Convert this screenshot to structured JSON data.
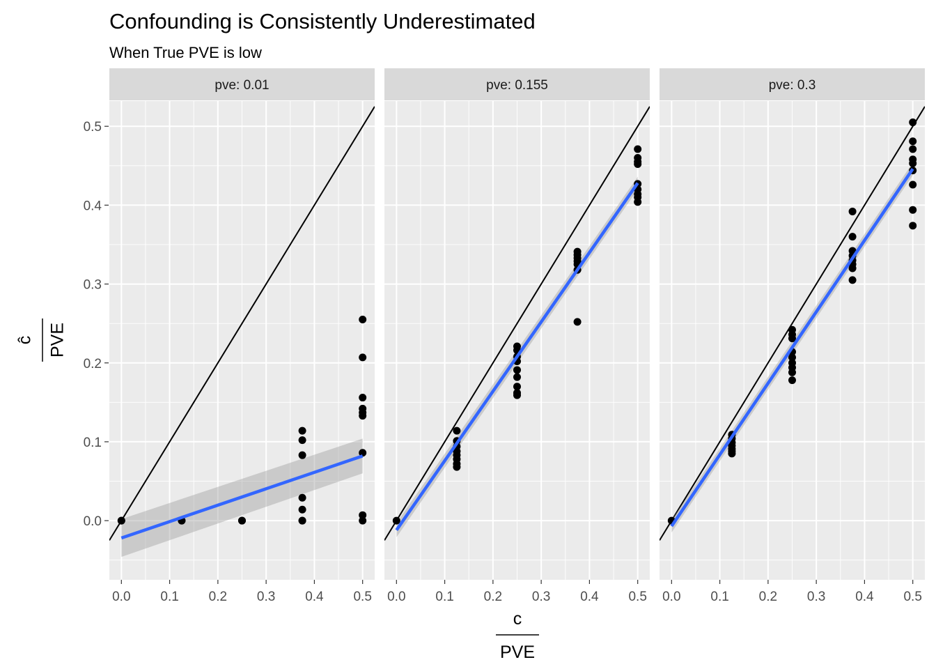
{
  "chart_data": {
    "type": "scatter",
    "title": "Confounding is Consistently Underestimated",
    "subtitle": "When True PVE is low",
    "xlabel": {
      "numerator": "c",
      "denominator": "PVE"
    },
    "ylabel": {
      "numerator": "ĉ",
      "denominator": "PVE"
    },
    "xlim": [
      -0.025,
      0.525
    ],
    "ylim": [
      -0.075,
      0.532
    ],
    "x_ticks": [
      "0.0",
      "0.1",
      "0.2",
      "0.3",
      "0.4",
      "0.5"
    ],
    "y_ticks": [
      "0.0",
      "0.1",
      "0.2",
      "0.3",
      "0.4",
      "0.5"
    ],
    "grid": true,
    "reference_line": "y = x",
    "panels": [
      {
        "strip": "pve: 0.01",
        "fit": {
          "x0": 0.0,
          "y0": -0.022,
          "x1": 0.5,
          "y1": 0.082
        },
        "band": {
          "lower0": -0.046,
          "upper0": 0.002,
          "lower1": 0.06,
          "upper1": 0.104
        },
        "points": [
          [
            0.0,
            0.0
          ],
          [
            0.0,
            0.0
          ],
          [
            0.125,
            0.0
          ],
          [
            0.125,
            0.0
          ],
          [
            0.25,
            0.0
          ],
          [
            0.25,
            0.0
          ],
          [
            0.375,
            0.114
          ],
          [
            0.375,
            0.102
          ],
          [
            0.375,
            0.083
          ],
          [
            0.375,
            0.029
          ],
          [
            0.375,
            0.014
          ],
          [
            0.375,
            0.0
          ],
          [
            0.375,
            0.0
          ],
          [
            0.5,
            0.255
          ],
          [
            0.5,
            0.207
          ],
          [
            0.5,
            0.156
          ],
          [
            0.5,
            0.142
          ],
          [
            0.5,
            0.137
          ],
          [
            0.5,
            0.133
          ],
          [
            0.5,
            0.086
          ],
          [
            0.5,
            0.007
          ],
          [
            0.5,
            0.0
          ]
        ]
      },
      {
        "strip": "pve: 0.155",
        "fit": {
          "x0": 0.0,
          "y0": -0.012,
          "x1": 0.5,
          "y1": 0.428
        },
        "band": {
          "lower0": -0.021,
          "upper0": -0.003,
          "lower1": 0.42,
          "upper1": 0.436
        },
        "points": [
          [
            0.0,
            0.0
          ],
          [
            0.125,
            0.114
          ],
          [
            0.125,
            0.101
          ],
          [
            0.125,
            0.094
          ],
          [
            0.125,
            0.088
          ],
          [
            0.125,
            0.083
          ],
          [
            0.125,
            0.078
          ],
          [
            0.125,
            0.072
          ],
          [
            0.125,
            0.068
          ],
          [
            0.25,
            0.221
          ],
          [
            0.25,
            0.216
          ],
          [
            0.25,
            0.208
          ],
          [
            0.25,
            0.202
          ],
          [
            0.25,
            0.191
          ],
          [
            0.25,
            0.182
          ],
          [
            0.25,
            0.17
          ],
          [
            0.25,
            0.162
          ],
          [
            0.25,
            0.159
          ],
          [
            0.375,
            0.341
          ],
          [
            0.375,
            0.337
          ],
          [
            0.375,
            0.333
          ],
          [
            0.375,
            0.329
          ],
          [
            0.375,
            0.325
          ],
          [
            0.375,
            0.318
          ],
          [
            0.375,
            0.252
          ],
          [
            0.5,
            0.471
          ],
          [
            0.5,
            0.46
          ],
          [
            0.5,
            0.455
          ],
          [
            0.5,
            0.452
          ],
          [
            0.5,
            0.427
          ],
          [
            0.5,
            0.42
          ],
          [
            0.5,
            0.414
          ],
          [
            0.5,
            0.41
          ],
          [
            0.5,
            0.404
          ]
        ]
      },
      {
        "strip": "pve: 0.3",
        "fit": {
          "x0": 0.0,
          "y0": -0.007,
          "x1": 0.5,
          "y1": 0.446
        },
        "band": {
          "lower0": -0.015,
          "upper0": 0.001,
          "lower1": 0.438,
          "upper1": 0.454
        },
        "points": [
          [
            0.0,
            0.0
          ],
          [
            0.125,
            0.109
          ],
          [
            0.125,
            0.104
          ],
          [
            0.125,
            0.099
          ],
          [
            0.125,
            0.095
          ],
          [
            0.125,
            0.091
          ],
          [
            0.125,
            0.088
          ],
          [
            0.125,
            0.085
          ],
          [
            0.25,
            0.242
          ],
          [
            0.25,
            0.236
          ],
          [
            0.25,
            0.231
          ],
          [
            0.25,
            0.214
          ],
          [
            0.25,
            0.207
          ],
          [
            0.25,
            0.2
          ],
          [
            0.25,
            0.194
          ],
          [
            0.25,
            0.188
          ],
          [
            0.25,
            0.178
          ],
          [
            0.375,
            0.392
          ],
          [
            0.375,
            0.36
          ],
          [
            0.375,
            0.342
          ],
          [
            0.375,
            0.336
          ],
          [
            0.375,
            0.33
          ],
          [
            0.375,
            0.325
          ],
          [
            0.375,
            0.32
          ],
          [
            0.375,
            0.305
          ],
          [
            0.5,
            0.505
          ],
          [
            0.5,
            0.481
          ],
          [
            0.5,
            0.471
          ],
          [
            0.5,
            0.458
          ],
          [
            0.5,
            0.453
          ],
          [
            0.5,
            0.444
          ],
          [
            0.5,
            0.426
          ],
          [
            0.5,
            0.394
          ],
          [
            0.5,
            0.374
          ]
        ]
      }
    ]
  },
  "colors": {
    "panel_bg": "#ebebeb",
    "grid": "#ffffff",
    "strip_bg": "#d9d9d9",
    "points": "#000000",
    "fit_line": "#3366ff",
    "band": "#999999",
    "reference_line": "#000000"
  }
}
